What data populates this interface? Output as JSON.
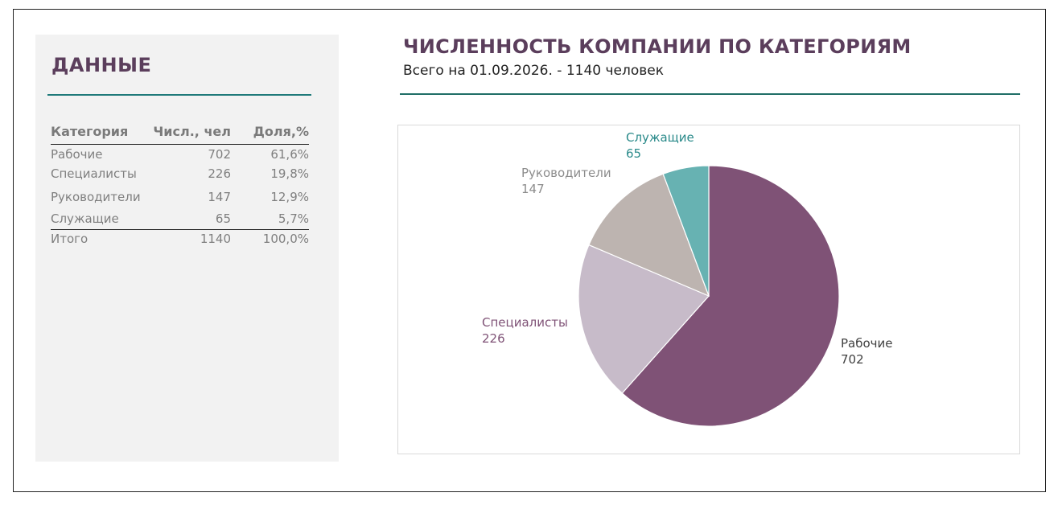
{
  "panel": {
    "title": "ДАННЫЕ",
    "headers": {
      "category": "Категория",
      "count": "Числ., чел",
      "share": "Доля,%"
    },
    "rows": [
      {
        "category": "Рабочие",
        "count": "702",
        "share": "61,6%"
      },
      {
        "category": "Специалисты",
        "count": "226",
        "share": "19,8%"
      },
      {
        "category": "Руководители",
        "count": "147",
        "share": "12,9%"
      },
      {
        "category": "Служащие",
        "count": "65",
        "share": "5,7%"
      }
    ],
    "total": {
      "category": "Итого",
      "count": "1140",
      "share": "100,0%"
    }
  },
  "chart_data": {
    "type": "pie",
    "title": "ЧИСЛЕННОСТЬ КОМПАНИИ ПО КАТЕГОРИЯМ",
    "subtitle": "Всего на 01.09.2026. - 1140 человек",
    "categories": [
      "Рабочие",
      "Специалисты",
      "Руководители",
      "Служащие"
    ],
    "values": [
      702,
      226,
      147,
      65
    ],
    "colors": [
      "#7f5276",
      "#c7bbc9",
      "#bdb4b0",
      "#67b2b2"
    ],
    "label_colors": [
      "#404040",
      "#7f5276",
      "#8c8c8c",
      "#2a8a8a"
    ],
    "start_angle_deg": 0,
    "direction": "clockwise"
  }
}
